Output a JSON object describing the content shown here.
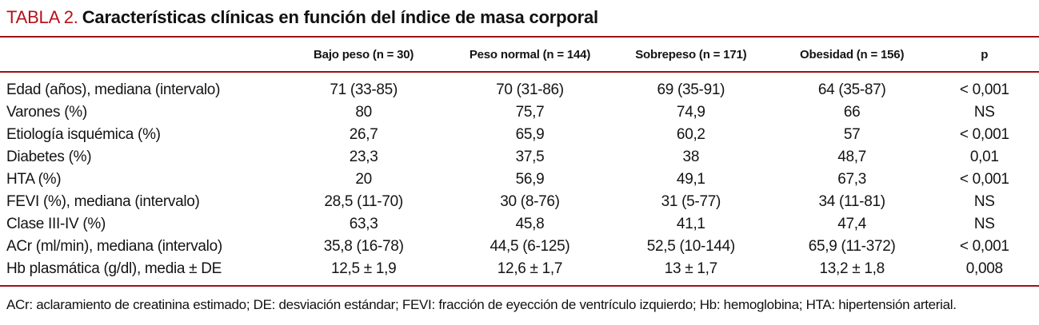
{
  "title": {
    "label": "TABLA 2.",
    "text": "Características clínicas en función del índice de masa corporal"
  },
  "table": {
    "columns": [
      "Bajo peso (n = 30)",
      "Peso normal (n = 144)",
      "Sobrepeso (n = 171)",
      "Obesidad (n = 156)",
      "p"
    ],
    "rows": [
      {
        "label": "Edad (años), mediana (intervalo)",
        "values": [
          "71 (33-85)",
          "70 (31-86)",
          "69 (35-91)",
          "64 (35-87)",
          "< 0,001"
        ]
      },
      {
        "label": "Varones (%)",
        "values": [
          "80",
          "75,7",
          "74,9",
          "66",
          "NS"
        ]
      },
      {
        "label": "Etiología isquémica (%)",
        "values": [
          "26,7",
          "65,9",
          "60,2",
          "57",
          "< 0,001"
        ]
      },
      {
        "label": "Diabetes (%)",
        "values": [
          "23,3",
          "37,5",
          "38",
          "48,7",
          "0,01"
        ]
      },
      {
        "label": "HTA (%)",
        "values": [
          "20",
          "56,9",
          "49,1",
          "67,3",
          "< 0,001"
        ]
      },
      {
        "label": "FEVI (%), mediana (intervalo)",
        "values": [
          "28,5 (11-70)",
          "30 (8-76)",
          "31 (5-77)",
          "34 (11-81)",
          "NS"
        ]
      },
      {
        "label": "Clase III-IV (%)",
        "values": [
          "63,3",
          "45,8",
          "41,1",
          "47,4",
          "NS"
        ]
      },
      {
        "label": "ACr (ml/min), mediana (intervalo)",
        "values": [
          "35,8 (16-78)",
          "44,5 (6-125)",
          "52,5 (10-144)",
          "65,9 (11-372)",
          "< 0,001"
        ]
      },
      {
        "label": "Hb plasmática (g/dl), media ± DE",
        "values": [
          "12,5 ± 1,9",
          "12,6 ± 1,7",
          "13 ± 1,7",
          "13,2 ± 1,8",
          "0,008"
        ]
      }
    ]
  },
  "footnote": "ACr: aclaramiento de creatinina estimado; DE: desviación estándar; FEVI: fracción de eyección de ventrículo izquierdo; Hb: hemoglobina; HTA: hipertensión arterial.",
  "colors": {
    "accent_red": "#b5121b",
    "rule_red": "#9e1016",
    "text": "#141414"
  }
}
